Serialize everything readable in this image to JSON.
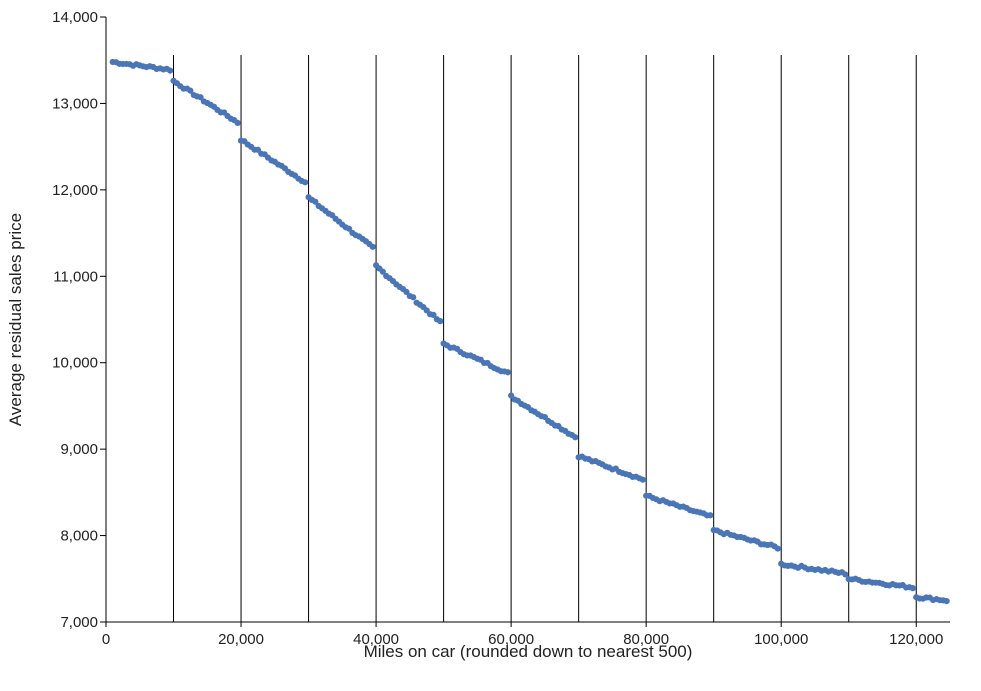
{
  "chart_data": {
    "type": "scatter",
    "title": "",
    "xlabel": "Miles on car (rounded down to nearest 500)",
    "ylabel": "Average residual sales price",
    "xlim": [
      0,
      125000
    ],
    "ylim": [
      7000,
      14000
    ],
    "xticks": [
      0,
      20000,
      40000,
      60000,
      80000,
      100000,
      120000
    ],
    "xtick_labels": [
      "0",
      "20,000",
      "40,000",
      "60,000",
      "80,000",
      "100,000",
      "120,000"
    ],
    "yticks": [
      7000,
      8000,
      9000,
      10000,
      11000,
      12000,
      13000,
      14000
    ],
    "ytick_labels": [
      "7,000",
      "8,000",
      "9,000",
      "10,000",
      "11,000",
      "12,000",
      "13,000",
      "14,000"
    ],
    "vlines": [
      10000,
      20000,
      30000,
      40000,
      50000,
      60000,
      70000,
      80000,
      90000,
      100000,
      110000,
      120000
    ],
    "grid": false,
    "point_color": "#4a76b8",
    "line_color": "#000000",
    "segments": [
      {
        "x0": 1000,
        "x1": 9500,
        "y0": 13480,
        "y1": 13390
      },
      {
        "x0": 10000,
        "x1": 19500,
        "y0": 13260,
        "y1": 12780
      },
      {
        "x0": 20000,
        "x1": 29500,
        "y0": 12580,
        "y1": 12090
      },
      {
        "x0": 30000,
        "x1": 39500,
        "y0": 11910,
        "y1": 11330
      },
      {
        "x0": 40000,
        "x1": 49500,
        "y0": 11120,
        "y1": 10470
      },
      {
        "x0": 50000,
        "x1": 59500,
        "y0": 10220,
        "y1": 9880
      },
      {
        "x0": 60000,
        "x1": 69500,
        "y0": 9610,
        "y1": 9140
      },
      {
        "x0": 70000,
        "x1": 79500,
        "y0": 8920,
        "y1": 8650
      },
      {
        "x0": 80000,
        "x1": 89500,
        "y0": 8460,
        "y1": 8220
      },
      {
        "x0": 90000,
        "x1": 99500,
        "y0": 8060,
        "y1": 7860
      },
      {
        "x0": 100000,
        "x1": 109500,
        "y0": 7670,
        "y1": 7560
      },
      {
        "x0": 110000,
        "x1": 119500,
        "y0": 7500,
        "y1": 7400
      },
      {
        "x0": 120000,
        "x1": 124500,
        "y0": 7290,
        "y1": 7250
      }
    ]
  }
}
